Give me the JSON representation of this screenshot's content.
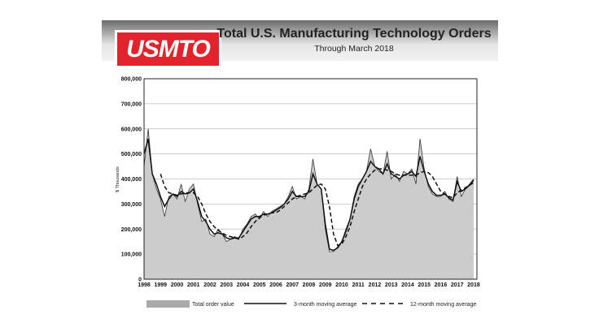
{
  "header": {
    "logo": "USMTO",
    "title": "Total U.S. Manufacturing Technology Orders",
    "subtitle": "Through March 2018"
  },
  "chart_data": {
    "type": "area",
    "title": "Total U.S. Manufacturing Technology Orders",
    "subtitle": "Through March 2018",
    "xlabel": "",
    "ylabel": "$ Thousands",
    "xlim": [
      1998,
      2018.2
    ],
    "ylim": [
      0,
      800000
    ],
    "yticks": [
      0,
      100000,
      200000,
      300000,
      400000,
      500000,
      600000,
      700000,
      800000
    ],
    "ytick_labels": [
      "0",
      "100,000",
      "200,000",
      "300,000",
      "400,000",
      "500,000",
      "600,000",
      "700,000",
      "800,000"
    ],
    "xtick_labels": [
      "1998",
      "1999",
      "2000",
      "2001",
      "2002",
      "2003",
      "2004",
      "2005",
      "2006",
      "2007",
      "2008",
      "2009",
      "2010",
      "2011",
      "2012",
      "2013",
      "2014",
      "2015",
      "2016",
      "2017",
      "2018"
    ],
    "grid": true,
    "legend": {
      "placement": "bottom",
      "entries": [
        "Total order value",
        "3-month moving average",
        "12-month moving average"
      ]
    },
    "x_start": 1998,
    "x_step": 0.25,
    "series": [
      {
        "name": "Total order value",
        "type": "area",
        "color": "#cccccc",
        "values": [
          450,
          600,
          420,
          360,
          320,
          250,
          330,
          340,
          320,
          380,
          310,
          360,
          380,
          300,
          230,
          240,
          180,
          170,
          200,
          180,
          150,
          160,
          170,
          160,
          200,
          220,
          250,
          260,
          240,
          270,
          250,
          270,
          280,
          290,
          300,
          330,
          370,
          320,
          330,
          320,
          360,
          480,
          380,
          360,
          200,
          110,
          110,
          130,
          150,
          200,
          240,
          330,
          380,
          400,
          430,
          520,
          450,
          430,
          420,
          510,
          400,
          420,
          390,
          430,
          420,
          440,
          380,
          560,
          440,
          370,
          340,
          330,
          330,
          350,
          320,
          310,
          410,
          330,
          360,
          380,
          400
        ]
      },
      {
        "name": "3-month moving average",
        "type": "line",
        "color": "#111111",
        "values": [
          500,
          560,
          420,
          380,
          330,
          290,
          320,
          340,
          330,
          350,
          340,
          345,
          360,
          310,
          250,
          230,
          200,
          180,
          185,
          180,
          165,
          160,
          165,
          165,
          190,
          215,
          240,
          250,
          250,
          260,
          260,
          265,
          275,
          285,
          300,
          320,
          350,
          330,
          330,
          330,
          350,
          420,
          380,
          360,
          220,
          120,
          115,
          125,
          150,
          190,
          240,
          320,
          370,
          400,
          430,
          470,
          450,
          440,
          420,
          460,
          420,
          410,
          400,
          415,
          420,
          430,
          410,
          490,
          430,
          380,
          350,
          335,
          335,
          340,
          325,
          315,
          390,
          350,
          360,
          375,
          395
        ]
      },
      {
        "name": "12-month moving average",
        "type": "dashed",
        "color": "#111111",
        "x_start": 1999,
        "values": [
          420,
          370,
          345,
          340,
          335,
          340,
          345,
          345,
          345,
          330,
          300,
          260,
          230,
          210,
          195,
          185,
          175,
          170,
          165,
          160,
          170,
          185,
          210,
          230,
          245,
          255,
          260,
          265,
          265,
          275,
          290,
          305,
          320,
          330,
          335,
          340,
          345,
          360,
          375,
          380,
          360,
          290,
          180,
          135,
          140,
          170,
          210,
          270,
          320,
          370,
          400,
          420,
          435,
          440,
          440,
          435,
          430,
          420,
          415,
          415,
          415,
          415,
          415,
          425,
          430,
          425,
          410,
          380,
          350,
          340,
          330,
          325,
          345,
          355,
          365,
          375,
          385
        ]
      }
    ],
    "value_unit": "thousands of $"
  }
}
